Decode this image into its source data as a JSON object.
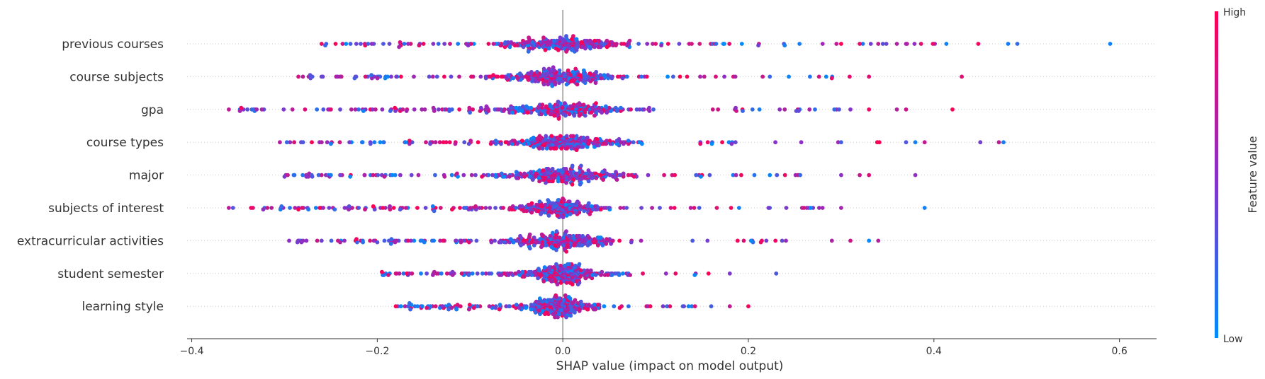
{
  "chart_data": {
    "type": "scatter",
    "subtype": "beeswarm",
    "xlabel": "SHAP value (impact on model output)",
    "xlim": [
      -0.405,
      0.64
    ],
    "x_ticks": [
      -0.4,
      -0.2,
      0.0,
      0.2,
      0.4,
      0.6
    ],
    "x_tick_labels": [
      "−0.4",
      "−0.2",
      "0.0",
      "0.2",
      "0.4",
      "0.6"
    ],
    "zero_line": true,
    "colorbar": {
      "title": "Feature value",
      "high_label": "High",
      "low_label": "Low",
      "high_color": "#ff0052",
      "mid_color": "#8a2fc8",
      "low_color": "#008bfb"
    },
    "features": [
      {
        "name": "previous courses",
        "min": -0.26,
        "max": 0.59,
        "spread": 0.11,
        "outliers": [
          -0.26,
          -0.21,
          0.3,
          0.32,
          0.34,
          0.36,
          0.37,
          0.48,
          0.49,
          0.59
        ]
      },
      {
        "name": "course subjects",
        "min": -0.285,
        "max": 0.43,
        "spread": 0.1,
        "outliers": [
          -0.285,
          -0.27,
          -0.24,
          0.29,
          0.33,
          0.43
        ]
      },
      {
        "name": "gpa",
        "min": -0.36,
        "max": 0.42,
        "spread": 0.12,
        "outliers": [
          -0.36,
          -0.34,
          -0.33,
          -0.25,
          -0.24,
          0.31,
          0.33,
          0.36,
          0.37,
          0.42
        ]
      },
      {
        "name": "course types",
        "min": -0.305,
        "max": 0.475,
        "spread": 0.09,
        "outliers": [
          -0.305,
          -0.28,
          -0.26,
          -0.25,
          -0.23,
          0.3,
          0.37,
          0.38,
          0.39,
          0.45,
          0.47,
          0.475
        ]
      },
      {
        "name": "major",
        "min": -0.3,
        "max": 0.38,
        "spread": 0.1,
        "outliers": [
          -0.3,
          -0.26,
          -0.25,
          -0.24,
          0.3,
          0.32,
          0.33,
          0.38
        ]
      },
      {
        "name": "subjects of interest",
        "min": -0.36,
        "max": 0.39,
        "spread": 0.08,
        "outliers": [
          -0.36,
          -0.285,
          -0.22,
          0.26,
          0.28,
          0.3,
          0.39
        ]
      },
      {
        "name": "extracurricular activities",
        "min": -0.295,
        "max": 0.34,
        "spread": 0.1,
        "outliers": [
          -0.295,
          -0.28,
          -0.26,
          -0.24,
          -0.2,
          0.29,
          0.31,
          0.33,
          0.34
        ]
      },
      {
        "name": "student semester",
        "min": -0.195,
        "max": 0.23,
        "spread": 0.07,
        "outliers": [
          -0.195,
          -0.18,
          0.18,
          0.23
        ]
      },
      {
        "name": "learning style",
        "min": -0.18,
        "max": 0.2,
        "spread": 0.06,
        "outliers": [
          -0.18,
          -0.17,
          0.16,
          0.18,
          0.2
        ]
      }
    ]
  }
}
